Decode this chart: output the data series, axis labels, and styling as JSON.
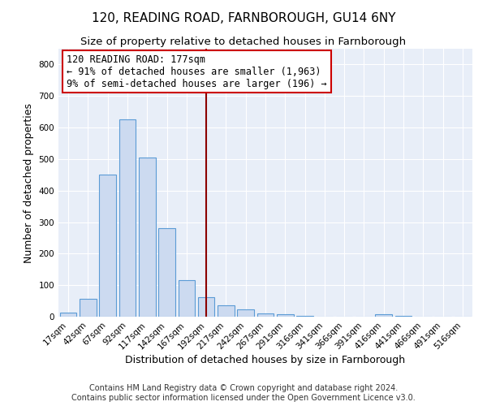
{
  "title": "120, READING ROAD, FARNBOROUGH, GU14 6NY",
  "subtitle": "Size of property relative to detached houses in Farnborough",
  "xlabel": "Distribution of detached houses by size in Farnborough",
  "ylabel": "Number of detached properties",
  "bar_color": "#ccdaf0",
  "bar_edge_color": "#5b9bd5",
  "background_color": "#e8eef8",
  "categories": [
    "17sqm",
    "42sqm",
    "67sqm",
    "92sqm",
    "117sqm",
    "142sqm",
    "167sqm",
    "192sqm",
    "217sqm",
    "242sqm",
    "267sqm",
    "291sqm",
    "316sqm",
    "341sqm",
    "366sqm",
    "391sqm",
    "416sqm",
    "441sqm",
    "466sqm",
    "491sqm",
    "516sqm"
  ],
  "values": [
    12,
    57,
    450,
    625,
    505,
    282,
    115,
    62,
    37,
    22,
    10,
    7,
    2,
    1,
    1,
    1,
    8,
    2,
    1,
    1,
    1
  ],
  "vline_color": "#8B0000",
  "annotation_line1": "120 READING ROAD: 177sqm",
  "annotation_line2": "← 91% of detached houses are smaller (1,963)",
  "annotation_line3": "9% of semi-detached houses are larger (196) →",
  "ylim": [
    0,
    850
  ],
  "yticks": [
    0,
    100,
    200,
    300,
    400,
    500,
    600,
    700,
    800
  ],
  "footer": "Contains HM Land Registry data © Crown copyright and database right 2024.\nContains public sector information licensed under the Open Government Licence v3.0.",
  "title_fontsize": 11,
  "subtitle_fontsize": 9.5,
  "annotation_fontsize": 8.5,
  "ylabel_fontsize": 9,
  "xlabel_fontsize": 9,
  "tick_fontsize": 7.5,
  "footer_fontsize": 7
}
